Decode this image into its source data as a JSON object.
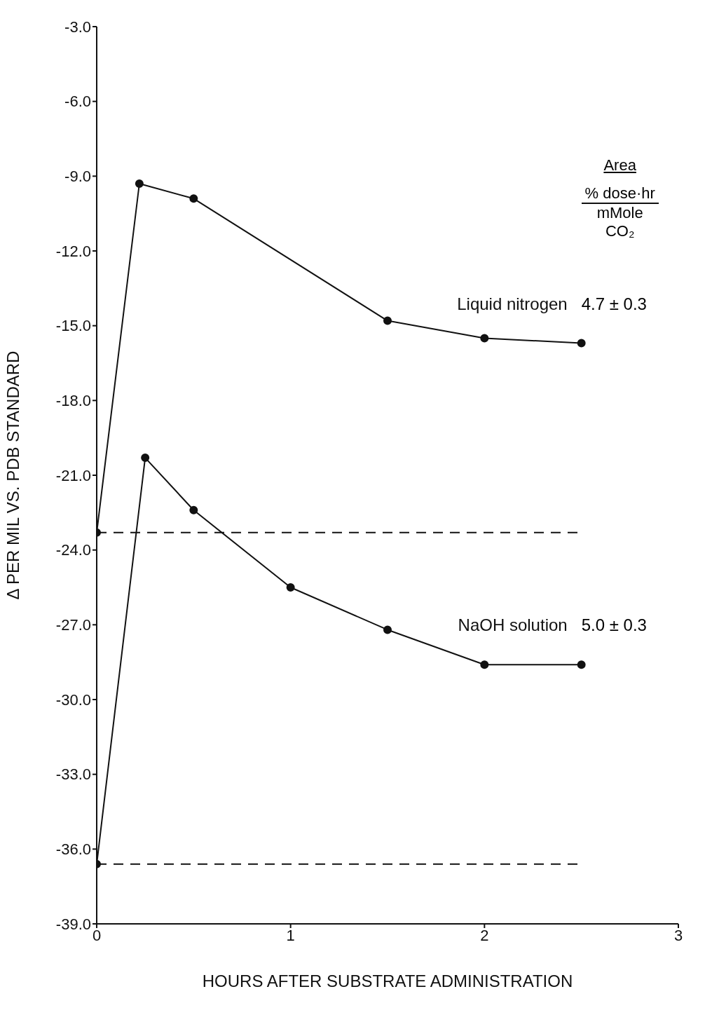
{
  "chart_data": {
    "type": "line",
    "xlabel": "HOURS AFTER SUBSTRATE ADMINISTRATION",
    "ylabel": "Δ PER MIL VS. PDB STANDARD",
    "xlim": [
      0,
      3
    ],
    "xticks": [
      0,
      1,
      2,
      3
    ],
    "ylim": [
      -39,
      -3
    ],
    "yticks": [
      {
        "value": -3,
        "label": "-3.0"
      },
      {
        "value": -6,
        "label": "-6.0"
      },
      {
        "value": -9,
        "label": "-9.0"
      },
      {
        "value": -12,
        "label": "-12.0"
      },
      {
        "value": -15,
        "label": "-15.0"
      },
      {
        "value": -18,
        "label": "-18.0"
      },
      {
        "value": -21,
        "label": "-21.0"
      },
      {
        "value": -24,
        "label": "-24.0"
      },
      {
        "value": -27,
        "label": "-27.0"
      },
      {
        "value": -30,
        "label": "-30.0"
      },
      {
        "value": -33,
        "label": "-33.0"
      },
      {
        "value": -36,
        "label": "-36.0"
      },
      {
        "value": -39,
        "label": "-39.0"
      }
    ],
    "marker": "circle",
    "series": [
      {
        "name": "Liquid nitrogen",
        "color": "#111111",
        "x": [
          0,
          0.22,
          0.5,
          1.5,
          2,
          2.5
        ],
        "values": [
          -23.3,
          -9.3,
          -9.9,
          -14.8,
          -15.5,
          -15.7
        ]
      },
      {
        "name": "NaOH solution",
        "color": "#111111",
        "x": [
          0,
          0.25,
          0.5,
          1,
          1.5,
          2,
          2.5
        ],
        "values": [
          -36.6,
          -20.3,
          -22.4,
          -25.5,
          -27.2,
          -28.6,
          -28.6
        ]
      },
      {
        "color": "#111111",
        "line_style": "dashed",
        "marker": "none",
        "x": [
          0,
          2.5
        ],
        "values": [
          -23.3,
          -23.3
        ]
      },
      {
        "color": "#111111",
        "line_style": "dashed",
        "marker": "none",
        "x": [
          0,
          2.5
        ],
        "values": [
          -36.6,
          -36.6
        ]
      }
    ],
    "annotations": [
      "Area",
      "% dose·hr",
      "mMole CO₂",
      "4.7 ± 0.3",
      "5.0 ± 0.3"
    ]
  }
}
